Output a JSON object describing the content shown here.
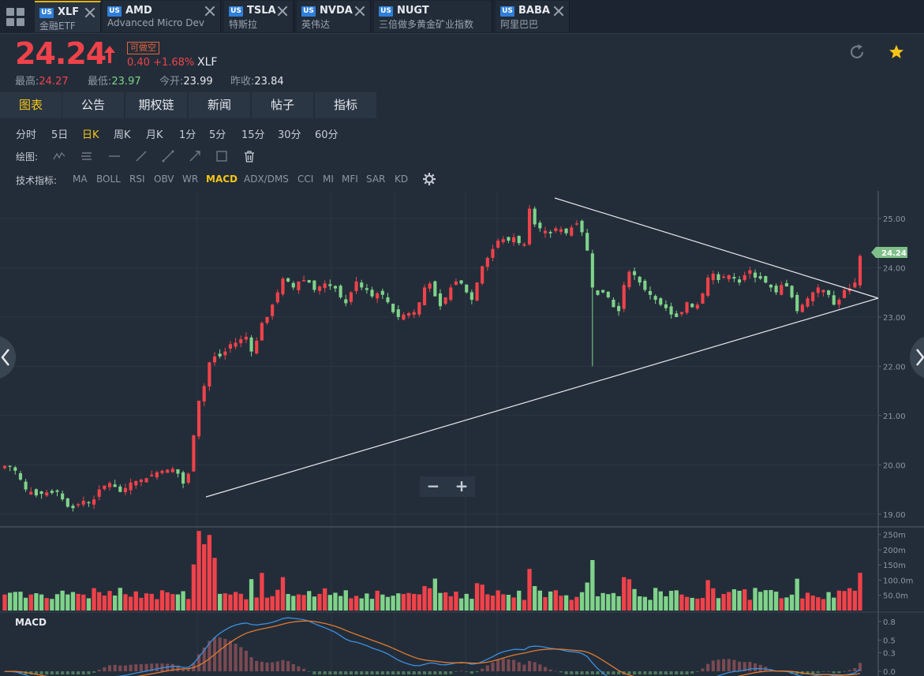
{
  "tabs": [
    {
      "market": "US",
      "symbol": "XLF",
      "name": "金融ETF",
      "active": true
    },
    {
      "market": "US",
      "symbol": "AMD",
      "name": "Advanced Micro Dev",
      "active": false
    },
    {
      "market": "US",
      "symbol": "TSLA",
      "name": "特斯拉",
      "active": false
    },
    {
      "market": "US",
      "symbol": "NVDA",
      "name": "英伟达",
      "active": false
    },
    {
      "market": "US",
      "symbol": "NUGT",
      "name": "三倍做多黄金矿业指数",
      "active": false
    },
    {
      "market": "US",
      "symbol": "BABA",
      "name": "阿里巴巴",
      "active": false
    }
  ],
  "quote": {
    "price": "24.24",
    "short_badge": "可做空",
    "change": "0.40 +1.68%",
    "symbol": "XLF",
    "high_label": "最高:",
    "high": "24.27",
    "low_label": "最低:",
    "low": "23.97",
    "open_label": "今开:",
    "open": "23.99",
    "prev_label": "昨收:",
    "prev": "23.84"
  },
  "nav": [
    "图表",
    "公告",
    "期权链",
    "新闻",
    "帖子",
    "指标"
  ],
  "periods": [
    "分时",
    "5日",
    "日K",
    "周K",
    "月K",
    "1分",
    "5分",
    "15分",
    "30分",
    "60分"
  ],
  "active_period": "日K",
  "draw_label": "绘图:",
  "indicator_label": "技术指标:",
  "indicators": [
    "MA",
    "BOLL",
    "RSI",
    "OBV",
    "WR",
    "MACD",
    "ADX/DMS",
    "CCI",
    "MI",
    "MFI",
    "SAR",
    "KD"
  ],
  "active_indicator": "MACD",
  "zoom": {
    "minus": "−",
    "plus": "+"
  },
  "colors": {
    "up": "#f0424a",
    "down": "#7fd38a",
    "accent": "#f5c518",
    "bg": "#232d39"
  },
  "chart_data": {
    "type": "candlestick",
    "price_axis": {
      "ticks": [
        "25.00",
        "24.00",
        "23.00",
        "22.00",
        "21.00",
        "20.00",
        "19.00"
      ],
      "range": [
        18.9,
        25.4
      ]
    },
    "last_price_label": "24.24",
    "volume_axis": {
      "ticks": [
        "250m",
        "200m",
        "150m",
        "100.0m",
        "50.0m"
      ],
      "range": [
        0,
        270
      ]
    },
    "macd_label": "MACD",
    "macd_axis": {
      "ticks": [
        "0.8",
        "0.5",
        "0.3",
        "0.0"
      ],
      "range": [
        -0.05,
        0.9
      ]
    },
    "closes": [
      19.98,
      19.96,
      19.88,
      19.7,
      19.5,
      19.45,
      19.38,
      19.41,
      19.44,
      19.43,
      19.45,
      19.3,
      19.15,
      19.12,
      19.2,
      19.27,
      19.22,
      19.3,
      19.5,
      19.58,
      19.63,
      19.55,
      19.45,
      19.53,
      19.64,
      19.67,
      19.7,
      19.73,
      19.8,
      19.85,
      19.88,
      19.9,
      19.92,
      19.82,
      19.62,
      19.82,
      20.6,
      21.3,
      21.6,
      22.08,
      22.2,
      22.2,
      22.3,
      22.45,
      22.48,
      22.55,
      22.6,
      22.3,
      22.52,
      22.88,
      23.0,
      23.25,
      23.5,
      23.78,
      23.72,
      23.6,
      23.72,
      23.75,
      23.7,
      23.55,
      23.62,
      23.68,
      23.63,
      23.58,
      23.4,
      23.28,
      23.5,
      23.72,
      23.6,
      23.55,
      23.42,
      23.48,
      23.45,
      23.3,
      23.1,
      23.0,
      23.05,
      23.08,
      23.1,
      23.3,
      23.6,
      23.68,
      23.42,
      23.22,
      23.4,
      23.6,
      23.72,
      23.68,
      23.5,
      23.35,
      23.7,
      24.03,
      24.2,
      24.38,
      24.55,
      24.58,
      24.55,
      24.62,
      24.5,
      24.48,
      25.2,
      24.88,
      24.8,
      24.75,
      24.7,
      24.8,
      24.78,
      24.7,
      24.82,
      24.9,
      24.72,
      24.35,
      23.6,
      23.45,
      23.5,
      23.4,
      23.2,
      23.12,
      23.65,
      23.92,
      23.85,
      23.7,
      23.55,
      23.45,
      23.35,
      23.25,
      23.18,
      23.05,
      23.0,
      23.1,
      23.3,
      23.2,
      23.25,
      23.48,
      23.8,
      23.88,
      23.75,
      23.82,
      23.85,
      23.78,
      23.7,
      23.85,
      23.95,
      23.8,
      23.78,
      23.7,
      23.6,
      23.5,
      23.65,
      23.62,
      23.4,
      23.12,
      23.25,
      23.38,
      23.5,
      23.6,
      23.55,
      23.45,
      23.25,
      23.35,
      23.55,
      23.58,
      23.7,
      24.24
    ]
  }
}
